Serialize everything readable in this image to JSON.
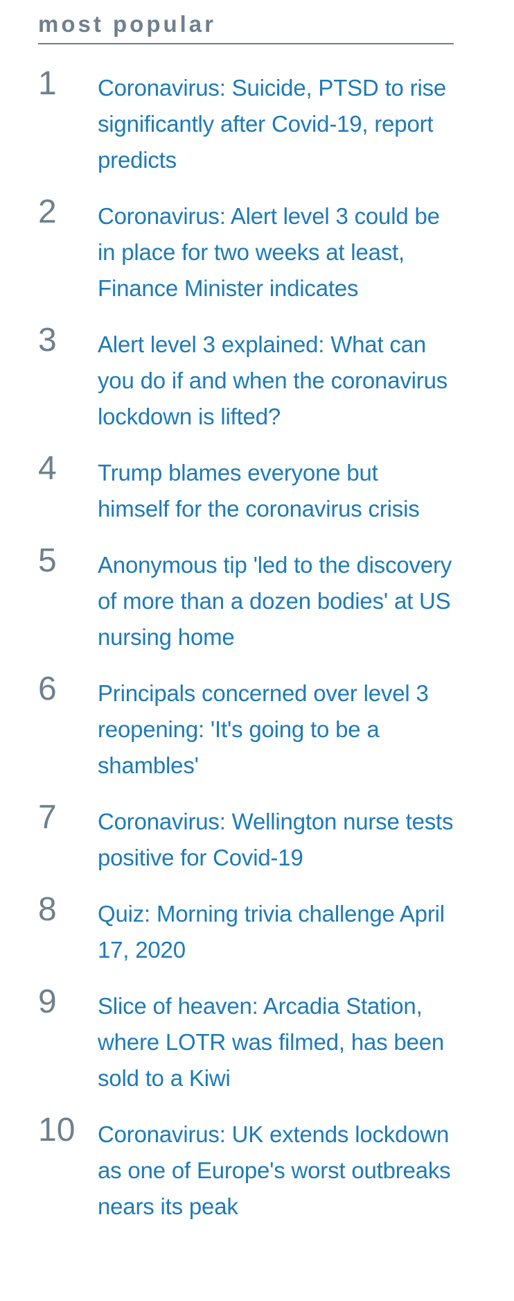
{
  "widget": {
    "title": "most popular",
    "items": [
      {
        "rank": "1",
        "headline": "Coronavirus: Suicide, PTSD to rise significantly after Covid-19, report predicts"
      },
      {
        "rank": "2",
        "headline": "Coronavirus: Alert level 3 could be in place for two weeks at least, Finance Minister indicates"
      },
      {
        "rank": "3",
        "headline": "Alert level 3 explained: What can you do if and when the coronavirus lockdown is lifted?"
      },
      {
        "rank": "4",
        "headline": "Trump blames everyone but himself for the coronavirus crisis"
      },
      {
        "rank": "5",
        "headline": "Anonymous tip 'led to the discovery of more than a dozen bodies' at US nursing home"
      },
      {
        "rank": "6",
        "headline": "Principals concerned over level 3 reopening: 'It's going to be a shambles'"
      },
      {
        "rank": "7",
        "headline": "Coronavirus: Wellington nurse tests positive for Covid-19"
      },
      {
        "rank": "8",
        "headline": "Quiz: Morning trivia challenge April 17, 2020"
      },
      {
        "rank": "9",
        "headline": "Slice of heaven: Arcadia Station, where LOTR was filmed, has been sold to a Kiwi"
      },
      {
        "rank": "10",
        "headline": "Coronavirus: UK extends lockdown as one of Europe's worst outbreaks nears its peak"
      }
    ]
  },
  "colors": {
    "header": "#6e808d",
    "rank": "#6e808d",
    "link": "#1e7ab5",
    "background": "#ffffff"
  }
}
